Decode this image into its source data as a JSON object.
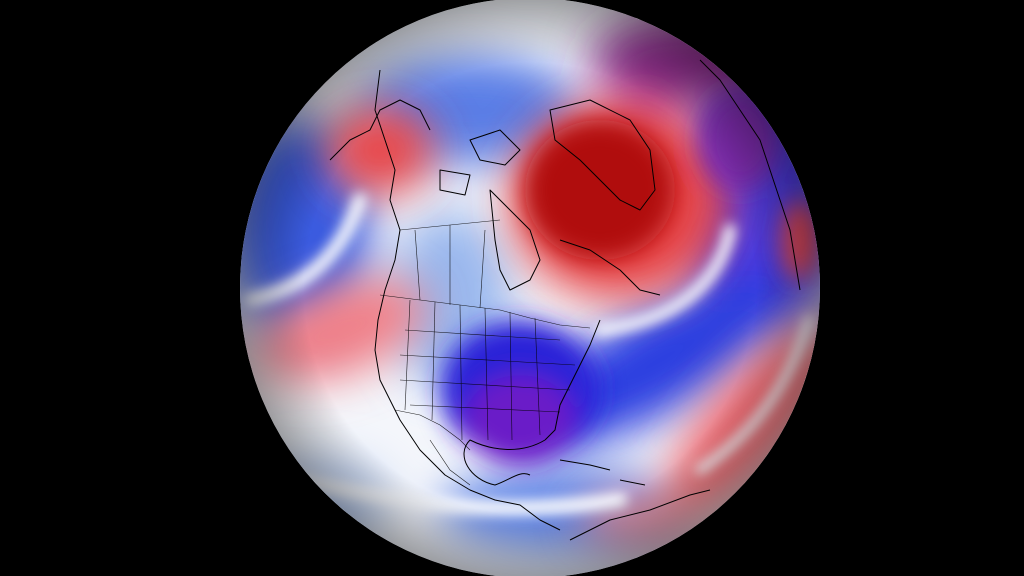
{
  "map": {
    "projection": "orthographic-globe",
    "view": "north-america-and-arctic",
    "field": "temperature-anomaly",
    "background_color": "#000000",
    "colors": {
      "strong_warm": "#b01010",
      "warm": "#e8464a",
      "mild_warm": "#f4a0a6",
      "neutral": "#f4f6fb",
      "mild_cold": "#9ab8ee",
      "cold": "#3a5ce0",
      "strong_cold": "#2a22d8",
      "extreme_cold": "#6a1fc8",
      "ocean_deep_purple": "#8a2a8a"
    },
    "regions": [
      {
        "name": "greenland-warm-anomaly",
        "sign": "warm",
        "intensity": "strong"
      },
      {
        "name": "alaska-warm-anomaly",
        "sign": "warm",
        "intensity": "moderate"
      },
      {
        "name": "north-pacific-warm-band",
        "sign": "warm",
        "intensity": "mild"
      },
      {
        "name": "north-atlantic-warm-band",
        "sign": "warm",
        "intensity": "moderate"
      },
      {
        "name": "eastern-us-cold-anomaly",
        "sign": "cold",
        "intensity": "extreme"
      },
      {
        "name": "western-canada-cold-anomaly",
        "sign": "cold",
        "intensity": "mild"
      },
      {
        "name": "siberia-cold-anomaly",
        "sign": "cold",
        "intensity": "moderate"
      }
    ],
    "overlays": [
      "coastlines",
      "country-borders",
      "us-state-borders",
      "canada-province-borders"
    ]
  }
}
